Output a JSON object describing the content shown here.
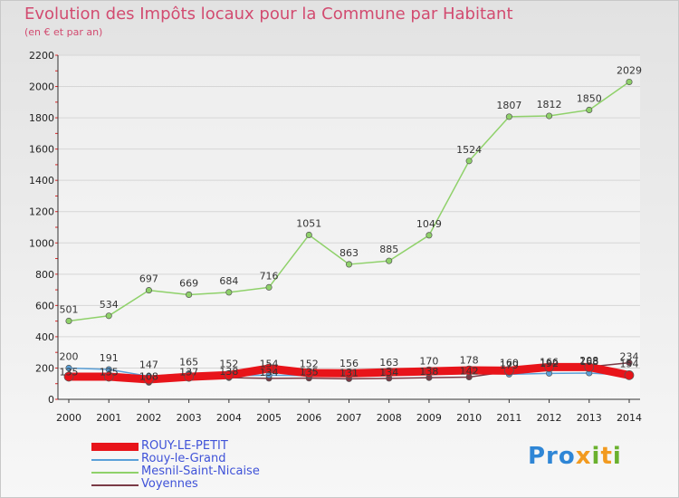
{
  "title": "Evolution des Impôts locaux pour la Commune par Habitant",
  "subtitle": "(en € et par an)",
  "logo": {
    "p1": "Pro",
    "p2": "x",
    "p3": "i",
    "p4": "t",
    "p5": "i"
  },
  "colors": {
    "rouy_le_petit": "#e8141a",
    "rouy_le_grand": "#5aa0d8",
    "mesnil": "#8fd16a",
    "voyennes": "#7a3a46"
  },
  "chart_data": {
    "type": "line",
    "title": "Evolution des Impôts locaux pour la Commune par Habitant",
    "ylabel": "(en € et par an)",
    "ylim": [
      0,
      2200
    ],
    "yticks": [
      0,
      200,
      400,
      600,
      800,
      1000,
      1200,
      1400,
      1600,
      1800,
      2000,
      2200
    ],
    "categories": [
      "2000",
      "2001",
      "2002",
      "2003",
      "2004",
      "2005",
      "2006",
      "2007",
      "2008",
      "2009",
      "2010",
      "2011",
      "2012",
      "2013",
      "2014"
    ],
    "series": [
      {
        "name": "ROUY-LE-PETIT",
        "key": "rouy_le_petit",
        "values": [
          145,
          145,
          127,
          144,
          155,
          197,
          168,
          166,
          173,
          179,
          185,
          183,
          206,
          206,
          154
        ],
        "labels": false
      },
      {
        "name": "Rouy-le-Grand",
        "key": "rouy_le_grand",
        "values": [
          200,
          191,
          147,
          165,
          152,
          154,
          152,
          156,
          163,
          170,
          178,
          160,
          166,
          168,
          154
        ],
        "labels": true
      },
      {
        "name": "Mesnil-Saint-Nicaise",
        "key": "mesnil",
        "values": [
          501,
          534,
          697,
          669,
          684,
          716,
          1051,
          863,
          885,
          1049,
          1524,
          1807,
          1812,
          1850,
          2029
        ],
        "labels": true
      },
      {
        "name": "Voyennes",
        "key": "voyennes",
        "values": [
          135,
          135,
          108,
          137,
          138,
          134,
          135,
          131,
          134,
          138,
          142,
          179,
          192,
          208,
          234
        ],
        "labels": true
      }
    ]
  }
}
